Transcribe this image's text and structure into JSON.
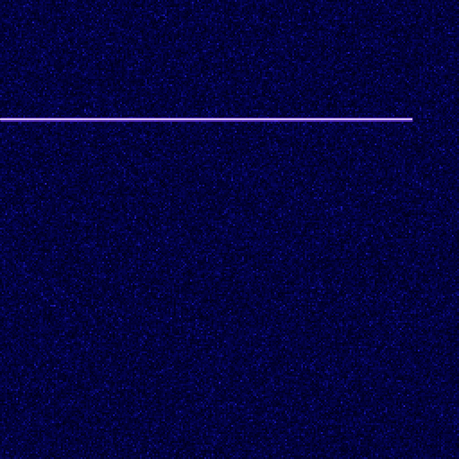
{
  "chart_data": {
    "type": "spectrogram",
    "xlim": [
      0,
      512
    ],
    "ylim": [
      512,
      0
    ],
    "tone": {
      "y": 133,
      "x_start": 0,
      "x_end": 460
    },
    "color": "#f4e4ff",
    "tick_labels": false,
    "grid": false
  }
}
